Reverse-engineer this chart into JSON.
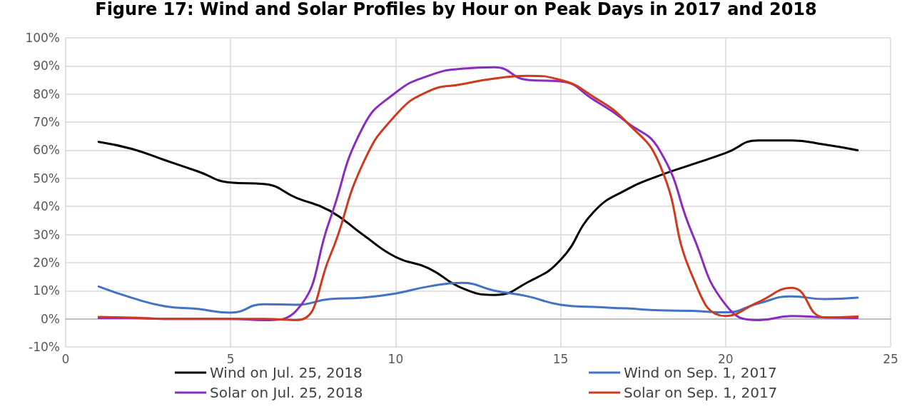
{
  "chart_data": {
    "type": "line",
    "title": "Figure 17: Wind and Solar Profiles by Hour on Peak Days in 2017 and 2018",
    "x": [
      1,
      2,
      3,
      4,
      5,
      6,
      7,
      8,
      9,
      10,
      11,
      12,
      13,
      14,
      15,
      16,
      17,
      18,
      19,
      20,
      21,
      22,
      23,
      24
    ],
    "series": [
      {
        "name": "Wind on Jul. 25, 2018",
        "color": "#000000",
        "values": [
          63,
          60.5,
          56.5,
          52.5,
          48.5,
          48,
          43,
          38.5,
          30,
          22,
          18,
          11,
          8.5,
          13,
          21,
          38,
          46,
          51,
          55,
          59,
          63.5,
          63.5,
          62,
          60
        ]
      },
      {
        "name": "Wind on Sep. 1, 2017",
        "color": "#4472c4",
        "values": [
          11.5,
          7.5,
          4.5,
          3.5,
          2.2,
          5.2,
          5,
          7,
          7.5,
          9,
          11.5,
          12.8,
          10,
          8,
          5,
          4.2,
          3.7,
          3,
          2.8,
          2.3,
          5.5,
          8,
          7,
          7.5
        ]
      },
      {
        "name": "Solar on Jul. 25, 2018",
        "color": "#8a2bc2",
        "values": [
          0.3,
          0.3,
          0,
          0,
          0,
          -0.5,
          3,
          35,
          68,
          80.5,
          86.5,
          89,
          89.5,
          85,
          84.5,
          78,
          70,
          60,
          30,
          5,
          -0.5,
          1,
          0.5,
          0.3
        ]
      },
      {
        "name": "Solar on Sep. 1, 2017",
        "color": "#d03a1c",
        "values": [
          0.7,
          0.4,
          0,
          0,
          0,
          0,
          -0.5,
          22,
          55,
          72.5,
          81,
          83.5,
          85.5,
          86.5,
          85,
          79,
          70,
          55,
          15,
          1,
          6,
          11,
          0.5,
          0.8
        ]
      }
    ],
    "xlim": [
      0,
      25
    ],
    "xticks": [
      0,
      5,
      10,
      15,
      20,
      25
    ],
    "ylim": [
      -10,
      100
    ],
    "yticks": [
      {
        "value": -10,
        "label": "-10%"
      },
      {
        "value": 0,
        "label": "0%"
      },
      {
        "value": 10,
        "label": "10%"
      },
      {
        "value": 20,
        "label": "20%"
      },
      {
        "value": 30,
        "label": "30%"
      },
      {
        "value": 40,
        "label": "40%"
      },
      {
        "value": 50,
        "label": "50%"
      },
      {
        "value": 60,
        "label": "60%"
      },
      {
        "value": 70,
        "label": "70%"
      },
      {
        "value": 80,
        "label": "80%"
      },
      {
        "value": 90,
        "label": "90%"
      },
      {
        "value": 100,
        "label": "100%"
      }
    ],
    "grid": true,
    "legend": "bottom",
    "marker": "none",
    "line_style": "solid"
  }
}
